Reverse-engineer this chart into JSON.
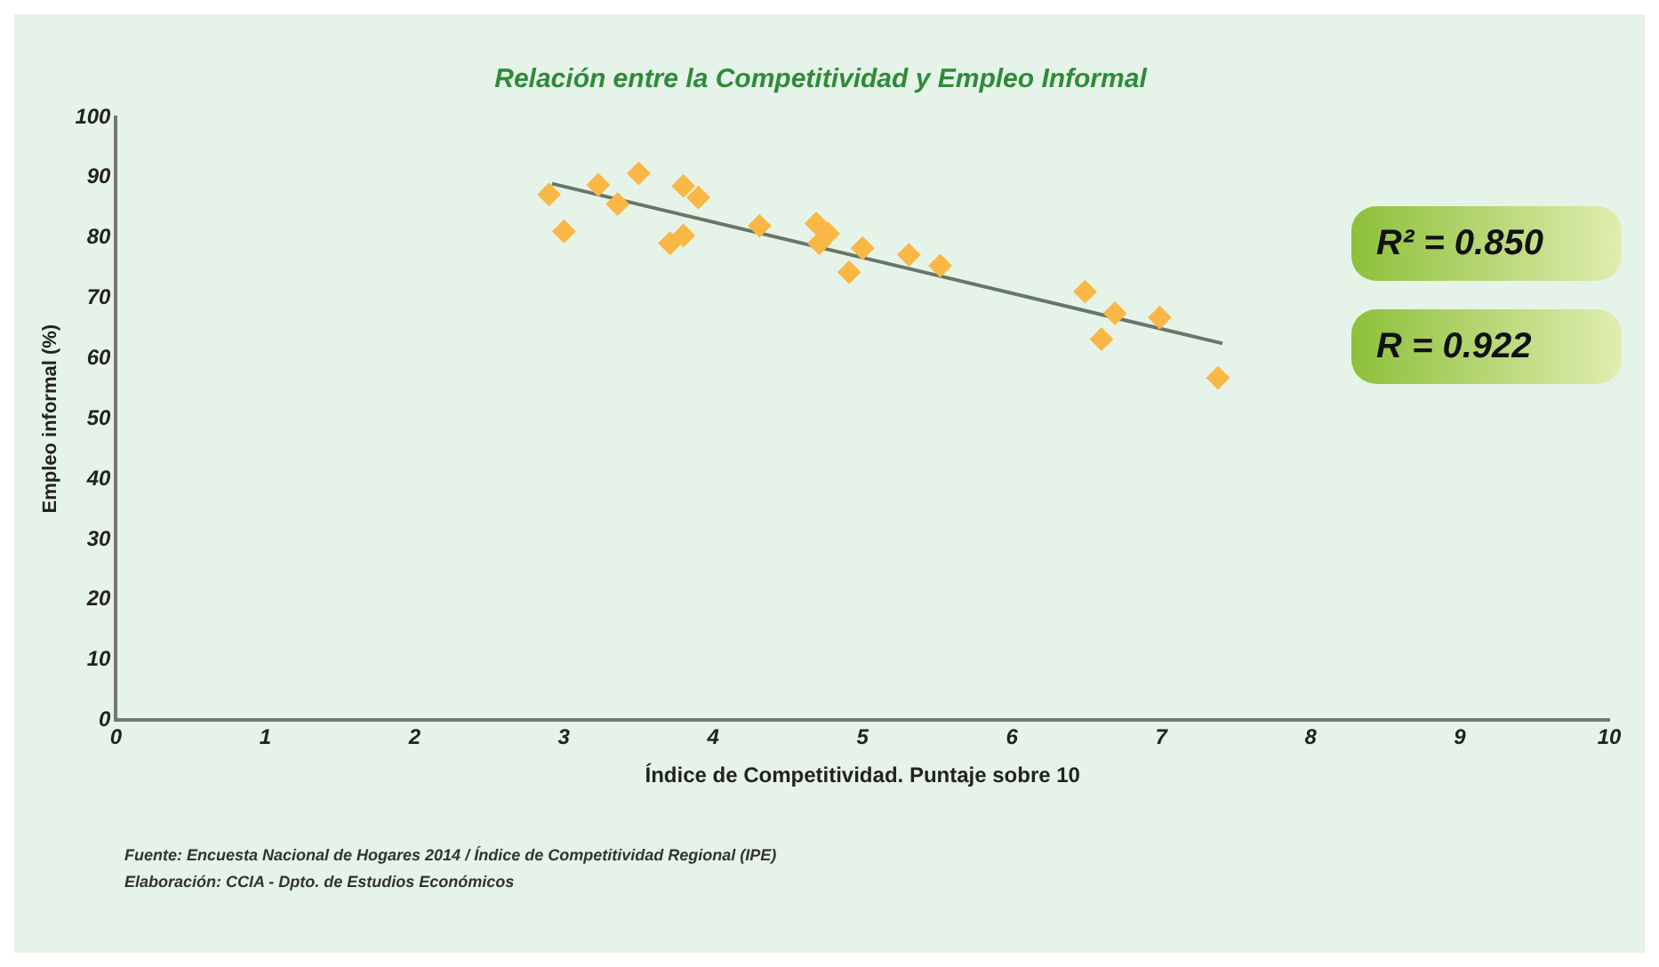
{
  "chart_data": {
    "type": "scatter",
    "title": "Relación entre la Competitividad y Empleo Informal",
    "xlabel": "Índice de Competitividad. Puntaje sobre 10",
    "ylabel": "Empleo informal (%)",
    "xlim": [
      0,
      10
    ],
    "xticks": [
      0,
      1,
      2,
      3,
      4,
      5,
      6,
      7,
      8,
      9,
      10
    ],
    "ylim": [
      0,
      100
    ],
    "yticks": [
      0,
      10,
      20,
      30,
      40,
      50,
      60,
      70,
      80,
      90,
      100
    ],
    "grid": false,
    "legend": false,
    "marker": "diamond",
    "series": [
      {
        "type": "scatter",
        "color": "#f9b845",
        "x": [
          2.9,
          3.0,
          3.23,
          3.36,
          3.5,
          3.71,
          3.8,
          3.8,
          3.9,
          4.31,
          4.69,
          4.77,
          4.71,
          4.91,
          5.0,
          5.31,
          5.52,
          6.49,
          6.69,
          6.6,
          6.99,
          7.38
        ],
        "values": [
          87.2,
          81.1,
          88.8,
          85.6,
          90.7,
          79.1,
          80.4,
          88.6,
          86.7,
          82.0,
          82.4,
          80.7,
          79.1,
          74.3,
          78.3,
          77.2,
          75.4,
          71.1,
          67.5,
          63.2,
          66.8,
          56.8
        ]
      },
      {
        "type": "line",
        "color": "#66776a",
        "x": [
          2.92,
          7.41
        ],
        "values": [
          89.0,
          62.5
        ],
        "marker": "none"
      }
    ],
    "annotations": [
      "R² = 0.850",
      "R = 0.922",
      "Fuente: Encuesta Nacional de Hogares 2014 / Índice de Competitividad Regional (IPE)",
      "Elaboración: CCIA - Dpto. de Estudios Económicos"
    ]
  }
}
